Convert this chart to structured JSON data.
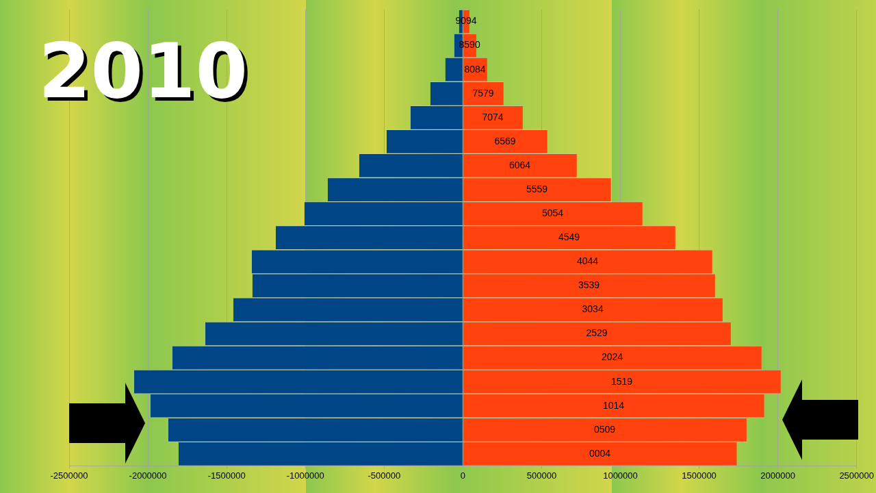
{
  "chart_data": {
    "type": "bar",
    "orientation": "horizontal",
    "stacked": true,
    "title": "2010",
    "categories": [
      "9094",
      "8590",
      "8084",
      "7579",
      "7074",
      "6569",
      "6064",
      "5559",
      "5054",
      "4549",
      "4044",
      "3539",
      "3034",
      "2529",
      "2024",
      "1519",
      "1014",
      "0509",
      "0004"
    ],
    "series": [
      {
        "color": "#004586",
        "values": [
          -24000,
          -54000,
          -111000,
          -206000,
          -332000,
          -484000,
          -658000,
          -858000,
          -1006000,
          -1188000,
          -1340000,
          -1336000,
          -1457000,
          -1635000,
          -1844000,
          -2087000,
          -1983000,
          -1870000,
          -1805000
        ]
      },
      {
        "color": "#ff420e",
        "values": [
          41000,
          85000,
          154000,
          258000,
          380000,
          536000,
          723000,
          940000,
          1140000,
          1349000,
          1583000,
          1601000,
          1649000,
          1701000,
          1896000,
          2018000,
          1913000,
          1801000,
          1739000
        ]
      }
    ],
    "xlim": [
      -2500000,
      2500000
    ],
    "xticks": [
      -2500000,
      -2000000,
      -1500000,
      -1000000,
      -500000,
      0,
      500000,
      1000000,
      1500000,
      2000000,
      2500000
    ],
    "grid": "x",
    "legend": false,
    "tick_labels": "x"
  }
}
